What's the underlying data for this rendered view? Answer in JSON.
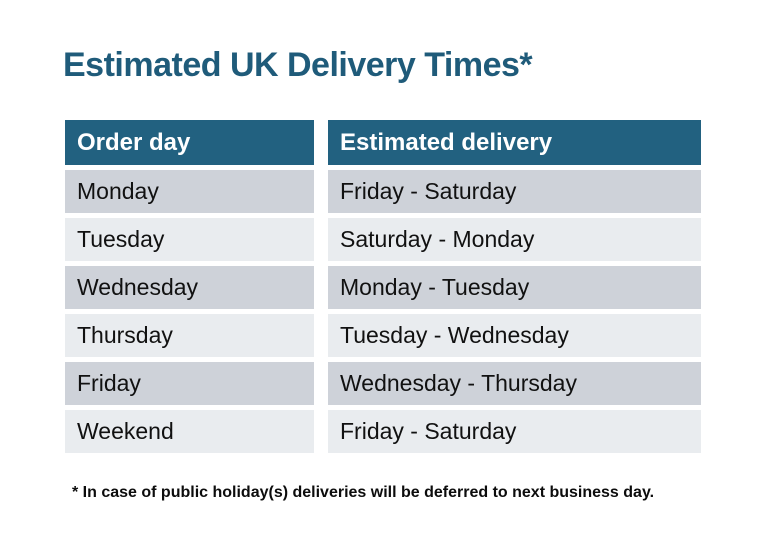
{
  "chart_data": {
    "type": "table",
    "title": "Estimated UK Delivery Times*",
    "columns": [
      "Order day",
      "Estimated delivery"
    ],
    "rows": [
      [
        "Monday",
        "Friday - Saturday"
      ],
      [
        "Tuesday",
        "Saturday - Monday"
      ],
      [
        "Wednesday",
        "Monday - Tuesday"
      ],
      [
        "Thursday",
        "Tuesday - Wednesday"
      ],
      [
        "Friday",
        "Wednesday - Thursday"
      ],
      [
        "Weekend",
        "Friday - Saturday"
      ]
    ],
    "footnote": "* In case of public holiday(s) deliveries will be deferred to next business day.",
    "layout_hints": {
      "header_position": "top",
      "row_striping": "alternating",
      "grid": "off"
    }
  },
  "colors": {
    "header_bg": "#226180",
    "header_text": "#FFFFFF",
    "row_dark_bg": "#CED2D9",
    "row_light_bg": "#E9ECEF",
    "title_text": "#1F5B7A",
    "body_text": "#111111",
    "background": "#FFFFFF"
  }
}
